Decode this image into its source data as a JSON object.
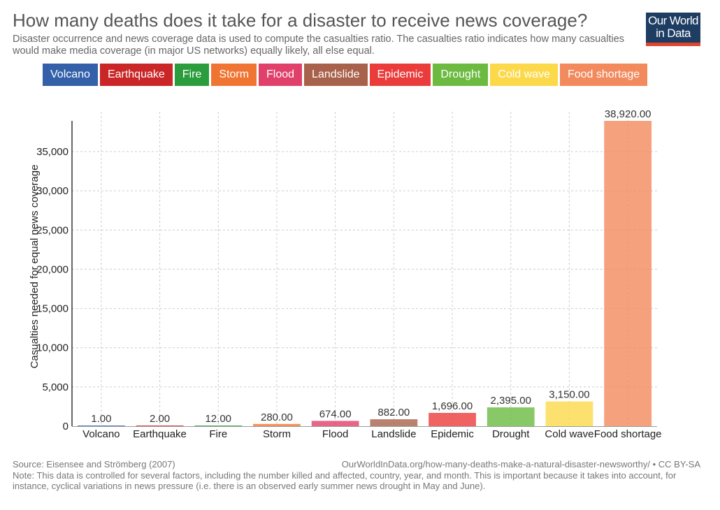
{
  "header": {
    "title": "How many deaths does it take for a disaster to receive news coverage?",
    "subtitle": "Disaster occurrence and news coverage data is used to compute the casualties ratio. The casualties ratio indicates how many casualties would make media coverage (in major US networks) equally likely, all else equal."
  },
  "logo": {
    "line1": "Our World",
    "line2": "in Data"
  },
  "legend": [
    {
      "label": "Volcano",
      "color": "#3360a9"
    },
    {
      "label": "Earthquake",
      "color": "#ca2628"
    },
    {
      "label": "Fire",
      "color": "#2c9d3d"
    },
    {
      "label": "Storm",
      "color": "#f07532"
    },
    {
      "label": "Flood",
      "color": "#e0406a"
    },
    {
      "label": "Landslide",
      "color": "#a8614b"
    },
    {
      "label": "Epidemic",
      "color": "#eb3c3c"
    },
    {
      "label": "Drought",
      "color": "#6cba40"
    },
    {
      "label": "Cold wave",
      "color": "#fcd94b"
    },
    {
      "label": "Food shortage",
      "color": "#f28a5e"
    }
  ],
  "chart_data": {
    "type": "bar",
    "ylabel": "Casualties needed for equal news coverage",
    "ylim": [
      0,
      40000
    ],
    "yticks": [
      0,
      5000,
      10000,
      15000,
      20000,
      25000,
      30000,
      35000
    ],
    "ytick_labels": [
      "0",
      "5,000",
      "10,000",
      "15,000",
      "20,000",
      "25,000",
      "30,000",
      "35,000"
    ],
    "grid": true,
    "categories": [
      "Volcano",
      "Earthquake",
      "Fire",
      "Storm",
      "Flood",
      "Landslide",
      "Epidemic",
      "Drought",
      "Cold wave",
      "Food shortage"
    ],
    "values": [
      1,
      2,
      12,
      280,
      674,
      882,
      1696,
      2395,
      3150,
      38920
    ],
    "value_labels": [
      "1.00",
      "2.00",
      "12.00",
      "280.00",
      "674.00",
      "882.00",
      "1,696.00",
      "2,395.00",
      "3,150.00",
      "38,920.00"
    ],
    "colors": [
      "#3360a9",
      "#ca2628",
      "#2c9d3d",
      "#f07532",
      "#e0406a",
      "#a8614b",
      "#eb3c3c",
      "#6cba40",
      "#fcd94b",
      "#f28a5e"
    ]
  },
  "footer": {
    "source": "Source: Eisensee and Strömberg (2007)",
    "url": "OurWorldInData.org/how-many-deaths-make-a-natural-disaster-newsworthy/ • CC BY-SA",
    "note": "Note: This data is controlled for several factors, including the number killed and affected, country, year, and month. This is important because it takes into account, for instance, cyclical variations in news pressure (i.e. there is an observed early summer news drought in May and June)."
  }
}
